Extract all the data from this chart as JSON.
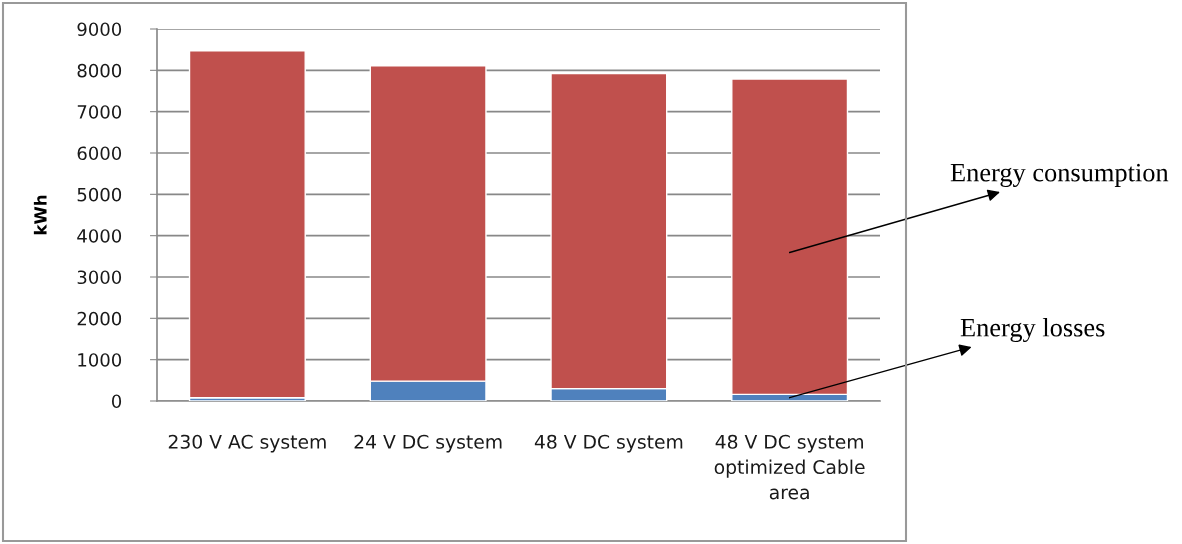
{
  "chart_data": {
    "type": "bar",
    "stacked": true,
    "ylabel": "kWh",
    "categories": [
      "230 V AC system",
      "24 V DC system",
      "48 V DC system",
      "48 V DC system\noptimized Cable\narea"
    ],
    "series": [
      {
        "name": "Energy losses",
        "color": "#4f81bd",
        "values": [
          80,
          480,
          300,
          160
        ]
      },
      {
        "name": "Energy consumption",
        "color": "#c0504d",
        "values": [
          8390,
          7630,
          7620,
          7630
        ]
      }
    ],
    "ylim": [
      0,
      9000
    ],
    "yticks": [
      0,
      1000,
      2000,
      3000,
      4000,
      5000,
      6000,
      7000,
      8000,
      9000
    ],
    "grid": "y",
    "legend": false
  }
}
